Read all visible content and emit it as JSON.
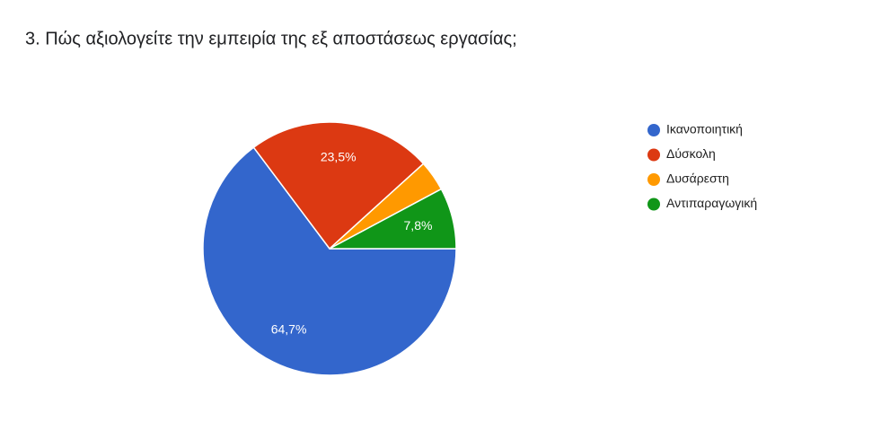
{
  "chart_data": {
    "type": "pie",
    "title": "3. Πώς αξιολογείτε την εμπειρία της εξ αποστάσεως εργασίας;",
    "categories": [
      "Ικανοποιητική",
      "Δύσκολη",
      "Δυσάρεστη",
      "Αντιπαραγωγική"
    ],
    "values": [
      64.7,
      23.5,
      3.9,
      7.8
    ],
    "value_labels": [
      "64,7%",
      "23,5%",
      null,
      "7,8%"
    ],
    "colors": [
      "#3366cc",
      "#dc3912",
      "#ff9900",
      "#109618"
    ],
    "legend": "right"
  }
}
